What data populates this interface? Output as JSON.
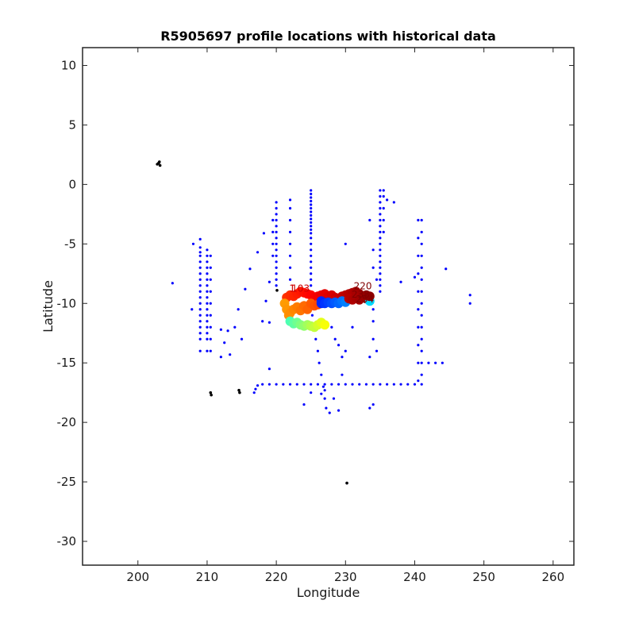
{
  "chart_data": {
    "type": "scatter",
    "title": "R5905697 profile locations with historical data",
    "xlabel": "Longitude",
    "ylabel": "Latitude",
    "xlim": [
      192,
      263
    ],
    "ylim": [
      -32,
      11.5
    ],
    "xticks": [
      200,
      210,
      220,
      230,
      240,
      250,
      260
    ],
    "yticks": [
      10,
      5,
      0,
      -5,
      -10,
      -15,
      -20,
      -25,
      -30
    ],
    "grid": false,
    "legend": "none",
    "colors": {
      "historical": "#0000ff",
      "land": "#000000",
      "profile_start": "#ff6a00",
      "profile_end": "#800000",
      "axes": "#262626"
    },
    "series": [
      {
        "points": [
          [
            209,
            -4.6
          ],
          [
            209,
            -5.3
          ],
          [
            209,
            -5.7
          ],
          [
            209,
            -6.0
          ],
          [
            209,
            -6.5
          ],
          [
            209,
            -7.0
          ],
          [
            209,
            -7.5
          ],
          [
            209,
            -8.0
          ],
          [
            209,
            -8.5
          ],
          [
            209,
            -9.0
          ],
          [
            209,
            -9.5
          ],
          [
            209,
            -10.0
          ],
          [
            209,
            -10.5
          ],
          [
            209,
            -11.0
          ],
          [
            209,
            -11.5
          ],
          [
            209,
            -12.0
          ],
          [
            209,
            -12.5
          ],
          [
            209,
            -13.0
          ],
          [
            209,
            -14.0
          ],
          [
            210,
            -5.5
          ],
          [
            210,
            -6.0
          ],
          [
            210,
            -6.5
          ],
          [
            210,
            -7.0
          ],
          [
            210,
            -7.5
          ],
          [
            210,
            -8.0
          ],
          [
            210,
            -8.5
          ],
          [
            210,
            -9.0
          ],
          [
            210,
            -9.5
          ],
          [
            210,
            -10.0
          ],
          [
            210,
            -10.5
          ],
          [
            210,
            -11.0
          ],
          [
            210,
            -11.5
          ],
          [
            210,
            -12.0
          ],
          [
            210,
            -12.5
          ],
          [
            210,
            -13.0
          ],
          [
            210,
            -14.0
          ],
          [
            210.5,
            -6.0
          ],
          [
            210.5,
            -7.0
          ],
          [
            210.5,
            -8.0
          ],
          [
            210.5,
            -9.0
          ],
          [
            210.5,
            -10.0
          ],
          [
            210.5,
            -11.0
          ],
          [
            210.5,
            -12.0
          ],
          [
            210.5,
            -13.0
          ],
          [
            210.5,
            -14.0
          ],
          [
            208,
            -5.0
          ],
          [
            207.8,
            -10.5
          ],
          [
            205,
            -8.3
          ],
          [
            212,
            -12.2
          ],
          [
            213,
            -12.3
          ],
          [
            214,
            -12.0
          ],
          [
            214.5,
            -10.5
          ],
          [
            215,
            -13.0
          ],
          [
            212.5,
            -13.3
          ],
          [
            212,
            -14.5
          ],
          [
            213.3,
            -14.3
          ],
          [
            215.5,
            -8.8
          ],
          [
            216.2,
            -7.1
          ],
          [
            217.3,
            -5.7
          ],
          [
            218.2,
            -4.1
          ],
          [
            218.5,
            -9.8
          ],
          [
            219,
            -15.5
          ],
          [
            219,
            -11.6
          ],
          [
            218,
            -11.5
          ],
          [
            219,
            -8.2
          ],
          [
            220,
            -1.5
          ],
          [
            220,
            -2.0
          ],
          [
            220,
            -2.5
          ],
          [
            220,
            -3.0
          ],
          [
            220,
            -3.5
          ],
          [
            220,
            -4.0
          ],
          [
            220,
            -4.5
          ],
          [
            220,
            -5.0
          ],
          [
            220,
            -5.5
          ],
          [
            220,
            -6.0
          ],
          [
            220,
            -6.5
          ],
          [
            220,
            -7.0
          ],
          [
            220,
            -7.5
          ],
          [
            220,
            -8.0
          ],
          [
            220,
            -8.5
          ],
          [
            219.5,
            -3.0
          ],
          [
            219.5,
            -4.0
          ],
          [
            219.5,
            -5.0
          ],
          [
            219.5,
            -6.0
          ],
          [
            222,
            -1.3
          ],
          [
            222,
            -2.0
          ],
          [
            222,
            -3.0
          ],
          [
            222,
            -4.0
          ],
          [
            222,
            -5.0
          ],
          [
            222,
            -6.0
          ],
          [
            222,
            -7.0
          ],
          [
            222,
            -8.0
          ],
          [
            225,
            -0.5
          ],
          [
            225,
            -0.8
          ],
          [
            225,
            -1.1
          ],
          [
            225,
            -1.4
          ],
          [
            225,
            -1.7
          ],
          [
            225,
            -2.0
          ],
          [
            225,
            -2.3
          ],
          [
            225,
            -2.6
          ],
          [
            225,
            -2.9
          ],
          [
            225,
            -3.2
          ],
          [
            225,
            -3.5
          ],
          [
            225,
            -3.8
          ],
          [
            225,
            -4.1
          ],
          [
            225,
            -4.5
          ],
          [
            225,
            -5.0
          ],
          [
            225,
            -5.5
          ],
          [
            225,
            -6.0
          ],
          [
            225,
            -6.5
          ],
          [
            225,
            -7.0
          ],
          [
            225,
            -7.5
          ],
          [
            225,
            -8.0
          ],
          [
            225,
            -8.5
          ],
          [
            225.2,
            -11.0
          ],
          [
            225.5,
            -12.0
          ],
          [
            225.7,
            -13.0
          ],
          [
            226,
            -14.0
          ],
          [
            226.2,
            -15.0
          ],
          [
            226.5,
            -16.0
          ],
          [
            226.8,
            -17.0
          ],
          [
            227,
            -18.0
          ],
          [
            227.2,
            -18.8
          ],
          [
            228,
            -12.0
          ],
          [
            228.5,
            -13.0
          ],
          [
            229,
            -13.5
          ],
          [
            229.5,
            -14.5
          ],
          [
            230,
            -14.0
          ],
          [
            229.5,
            -16.0
          ],
          [
            229,
            -19.0
          ],
          [
            230,
            -5.0
          ],
          [
            231,
            -12.0
          ],
          [
            233.5,
            -3.0
          ],
          [
            234,
            -5.5
          ],
          [
            234,
            -7.0
          ],
          [
            234.5,
            -8.0
          ],
          [
            234,
            -10.5
          ],
          [
            234,
            -11.5
          ],
          [
            234,
            -13.0
          ],
          [
            234.5,
            -14.0
          ],
          [
            233.5,
            -14.5
          ],
          [
            233.5,
            -18.8
          ],
          [
            234,
            -18.5
          ],
          [
            235,
            -0.5
          ],
          [
            235,
            -1.0
          ],
          [
            235,
            -1.5
          ],
          [
            235,
            -2.0
          ],
          [
            235,
            -2.5
          ],
          [
            235,
            -3.0
          ],
          [
            235,
            -3.5
          ],
          [
            235,
            -4.0
          ],
          [
            235,
            -4.5
          ],
          [
            235,
            -5.0
          ],
          [
            235,
            -5.5
          ],
          [
            235,
            -6.0
          ],
          [
            235,
            -6.5
          ],
          [
            235,
            -7.0
          ],
          [
            235,
            -7.5
          ],
          [
            235,
            -8.0
          ],
          [
            235,
            -8.5
          ],
          [
            235,
            -9.0
          ],
          [
            235.5,
            -0.5
          ],
          [
            235.5,
            -1.0
          ],
          [
            235.5,
            -2.0
          ],
          [
            235.5,
            -3.0
          ],
          [
            235.5,
            -4.0
          ],
          [
            236,
            -1.3
          ],
          [
            237,
            -1.5
          ],
          [
            238,
            -8.2
          ],
          [
            240,
            -7.8
          ],
          [
            240.5,
            -3.0
          ],
          [
            240.5,
            -4.5
          ],
          [
            240.5,
            -6.0
          ],
          [
            240.5,
            -7.5
          ],
          [
            240.5,
            -9.0
          ],
          [
            240.5,
            -10.5
          ],
          [
            240.5,
            -12.0
          ],
          [
            240.5,
            -13.5
          ],
          [
            240.5,
            -15.0
          ],
          [
            240.5,
            -16.5
          ],
          [
            241,
            -3.0
          ],
          [
            241,
            -4.0
          ],
          [
            241,
            -5.0
          ],
          [
            241,
            -6.0
          ],
          [
            241,
            -7.0
          ],
          [
            241,
            -8.0
          ],
          [
            241,
            -9.0
          ],
          [
            241,
            -10.0
          ],
          [
            241,
            -11.0
          ],
          [
            241,
            -12.0
          ],
          [
            241,
            -13.0
          ],
          [
            241,
            -14.0
          ],
          [
            241,
            -15.0
          ],
          [
            241,
            -16.0
          ],
          [
            242,
            -15.0
          ],
          [
            243,
            -15.0
          ],
          [
            244,
            -15.0
          ],
          [
            244.5,
            -7.1
          ],
          [
            248,
            -9.3
          ],
          [
            248,
            -10.0
          ],
          [
            230.2,
            -25.1
          ],
          [
            216.8,
            -17.5
          ],
          [
            217.0,
            -17.2
          ],
          [
            217.3,
            -16.9
          ],
          [
            218.0,
            -16.8
          ],
          [
            219.0,
            -16.8
          ],
          [
            220.0,
            -16.8
          ],
          [
            221.0,
            -16.8
          ],
          [
            222.0,
            -16.8
          ],
          [
            223.0,
            -16.8
          ],
          [
            224.0,
            -16.8
          ],
          [
            225.0,
            -16.8
          ],
          [
            226.0,
            -16.8
          ],
          [
            227.0,
            -16.8
          ],
          [
            228.0,
            -16.8
          ],
          [
            229.0,
            -16.8
          ],
          [
            230.0,
            -16.8
          ],
          [
            231.0,
            -16.8
          ],
          [
            232.0,
            -16.8
          ],
          [
            233.0,
            -16.8
          ],
          [
            234.0,
            -16.8
          ],
          [
            235.0,
            -16.8
          ],
          [
            236.0,
            -16.8
          ],
          [
            237.0,
            -16.8
          ],
          [
            238.0,
            -16.8
          ],
          [
            239.0,
            -16.8
          ],
          [
            240.0,
            -16.8
          ],
          [
            241.0,
            -16.8
          ],
          [
            227.0,
            -17.3
          ],
          [
            226.5,
            -17.6
          ],
          [
            225.0,
            -17.5
          ],
          [
            224.0,
            -18.5
          ],
          [
            228.3,
            -18.0
          ],
          [
            227.7,
            -19.2
          ]
        ]
      },
      {
        "points": [
          [
            203,
            1.8
          ],
          [
            202.8,
            1.7
          ],
          [
            203.2,
            1.6
          ],
          [
            203.1,
            1.9
          ],
          [
            210.5,
            -17.5
          ],
          [
            210.6,
            -17.7
          ],
          [
            214.6,
            -17.3
          ],
          [
            214.7,
            -17.5
          ],
          [
            220.1,
            -8.9
          ],
          [
            230.2,
            -25.1
          ]
        ]
      },
      {
        "points": [
          [
            221.5,
            -9.5
          ],
          [
            222.0,
            -9.3
          ],
          [
            222.5,
            -9.4
          ],
          [
            223.0,
            -9.2
          ],
          [
            223.5,
            -9.0
          ],
          [
            224.0,
            -9.1
          ],
          [
            224.5,
            -9.2
          ],
          [
            225.0,
            -9.3
          ],
          [
            225.5,
            -9.5
          ],
          [
            226.0,
            -9.4
          ],
          [
            226.5,
            -9.3
          ],
          [
            227.0,
            -9.2
          ],
          [
            227.5,
            -9.4
          ],
          [
            228.0,
            -9.3
          ],
          [
            228.5,
            -9.5
          ],
          [
            229.0,
            -9.6
          ],
          [
            229.5,
            -9.4
          ],
          [
            230.0,
            -9.3
          ],
          [
            230.5,
            -9.2
          ],
          [
            231.0,
            -9.1
          ],
          [
            231.5,
            -9.0
          ],
          [
            232.0,
            -9.2
          ],
          [
            232.5,
            -9.5
          ],
          [
            233.0,
            -9.6
          ],
          [
            233.5,
            -9.8
          ],
          [
            221.2,
            -10.0
          ],
          [
            221.5,
            -10.5
          ],
          [
            221.8,
            -11.0
          ],
          [
            222.0,
            -10.8
          ],
          [
            222.5,
            -10.5
          ],
          [
            223.0,
            -10.3
          ],
          [
            223.5,
            -10.6
          ],
          [
            224.0,
            -10.2
          ],
          [
            224.5,
            -10.5
          ],
          [
            225.0,
            -10.0
          ],
          [
            225.5,
            -10.2
          ],
          [
            226.0,
            -10.1
          ],
          [
            226.5,
            -10.0
          ],
          [
            222.0,
            -11.5
          ],
          [
            222.5,
            -11.7
          ],
          [
            223.0,
            -11.6
          ],
          [
            223.5,
            -11.8
          ],
          [
            224.0,
            -11.9
          ],
          [
            224.5,
            -11.8
          ],
          [
            225.0,
            -11.9
          ],
          [
            225.5,
            -12.0
          ],
          [
            226.0,
            -11.8
          ],
          [
            226.5,
            -11.6
          ],
          [
            227.0,
            -11.8
          ],
          [
            226.5,
            -9.8
          ],
          [
            227.0,
            -10.0
          ],
          [
            227.5,
            -9.9
          ],
          [
            228.0,
            -10.0
          ],
          [
            228.5,
            -9.9
          ],
          [
            229.0,
            -10.0
          ],
          [
            229.5,
            -9.8
          ],
          [
            230.0,
            -9.9
          ],
          [
            230.5,
            -9.6
          ],
          [
            231.0,
            -9.7
          ],
          [
            231.5,
            -9.5
          ],
          [
            232.0,
            -9.7
          ],
          [
            232.5,
            -9.4
          ],
          [
            233.0,
            -9.3
          ],
          [
            233.5,
            -9.4
          ]
        ],
        "labels": [
          {
            "x": 222.3,
            "y": -9.0,
            "text": "1"
          },
          {
            "x": 223.5,
            "y": -9.0,
            "text": "103"
          },
          {
            "x": 232.5,
            "y": -8.8,
            "text": "220"
          },
          {
            "x": 232.2,
            "y": -9.5,
            "text": "238"
          },
          {
            "x": 232.8,
            "y": -9.9,
            "text": "254"
          }
        ]
      }
    ]
  }
}
